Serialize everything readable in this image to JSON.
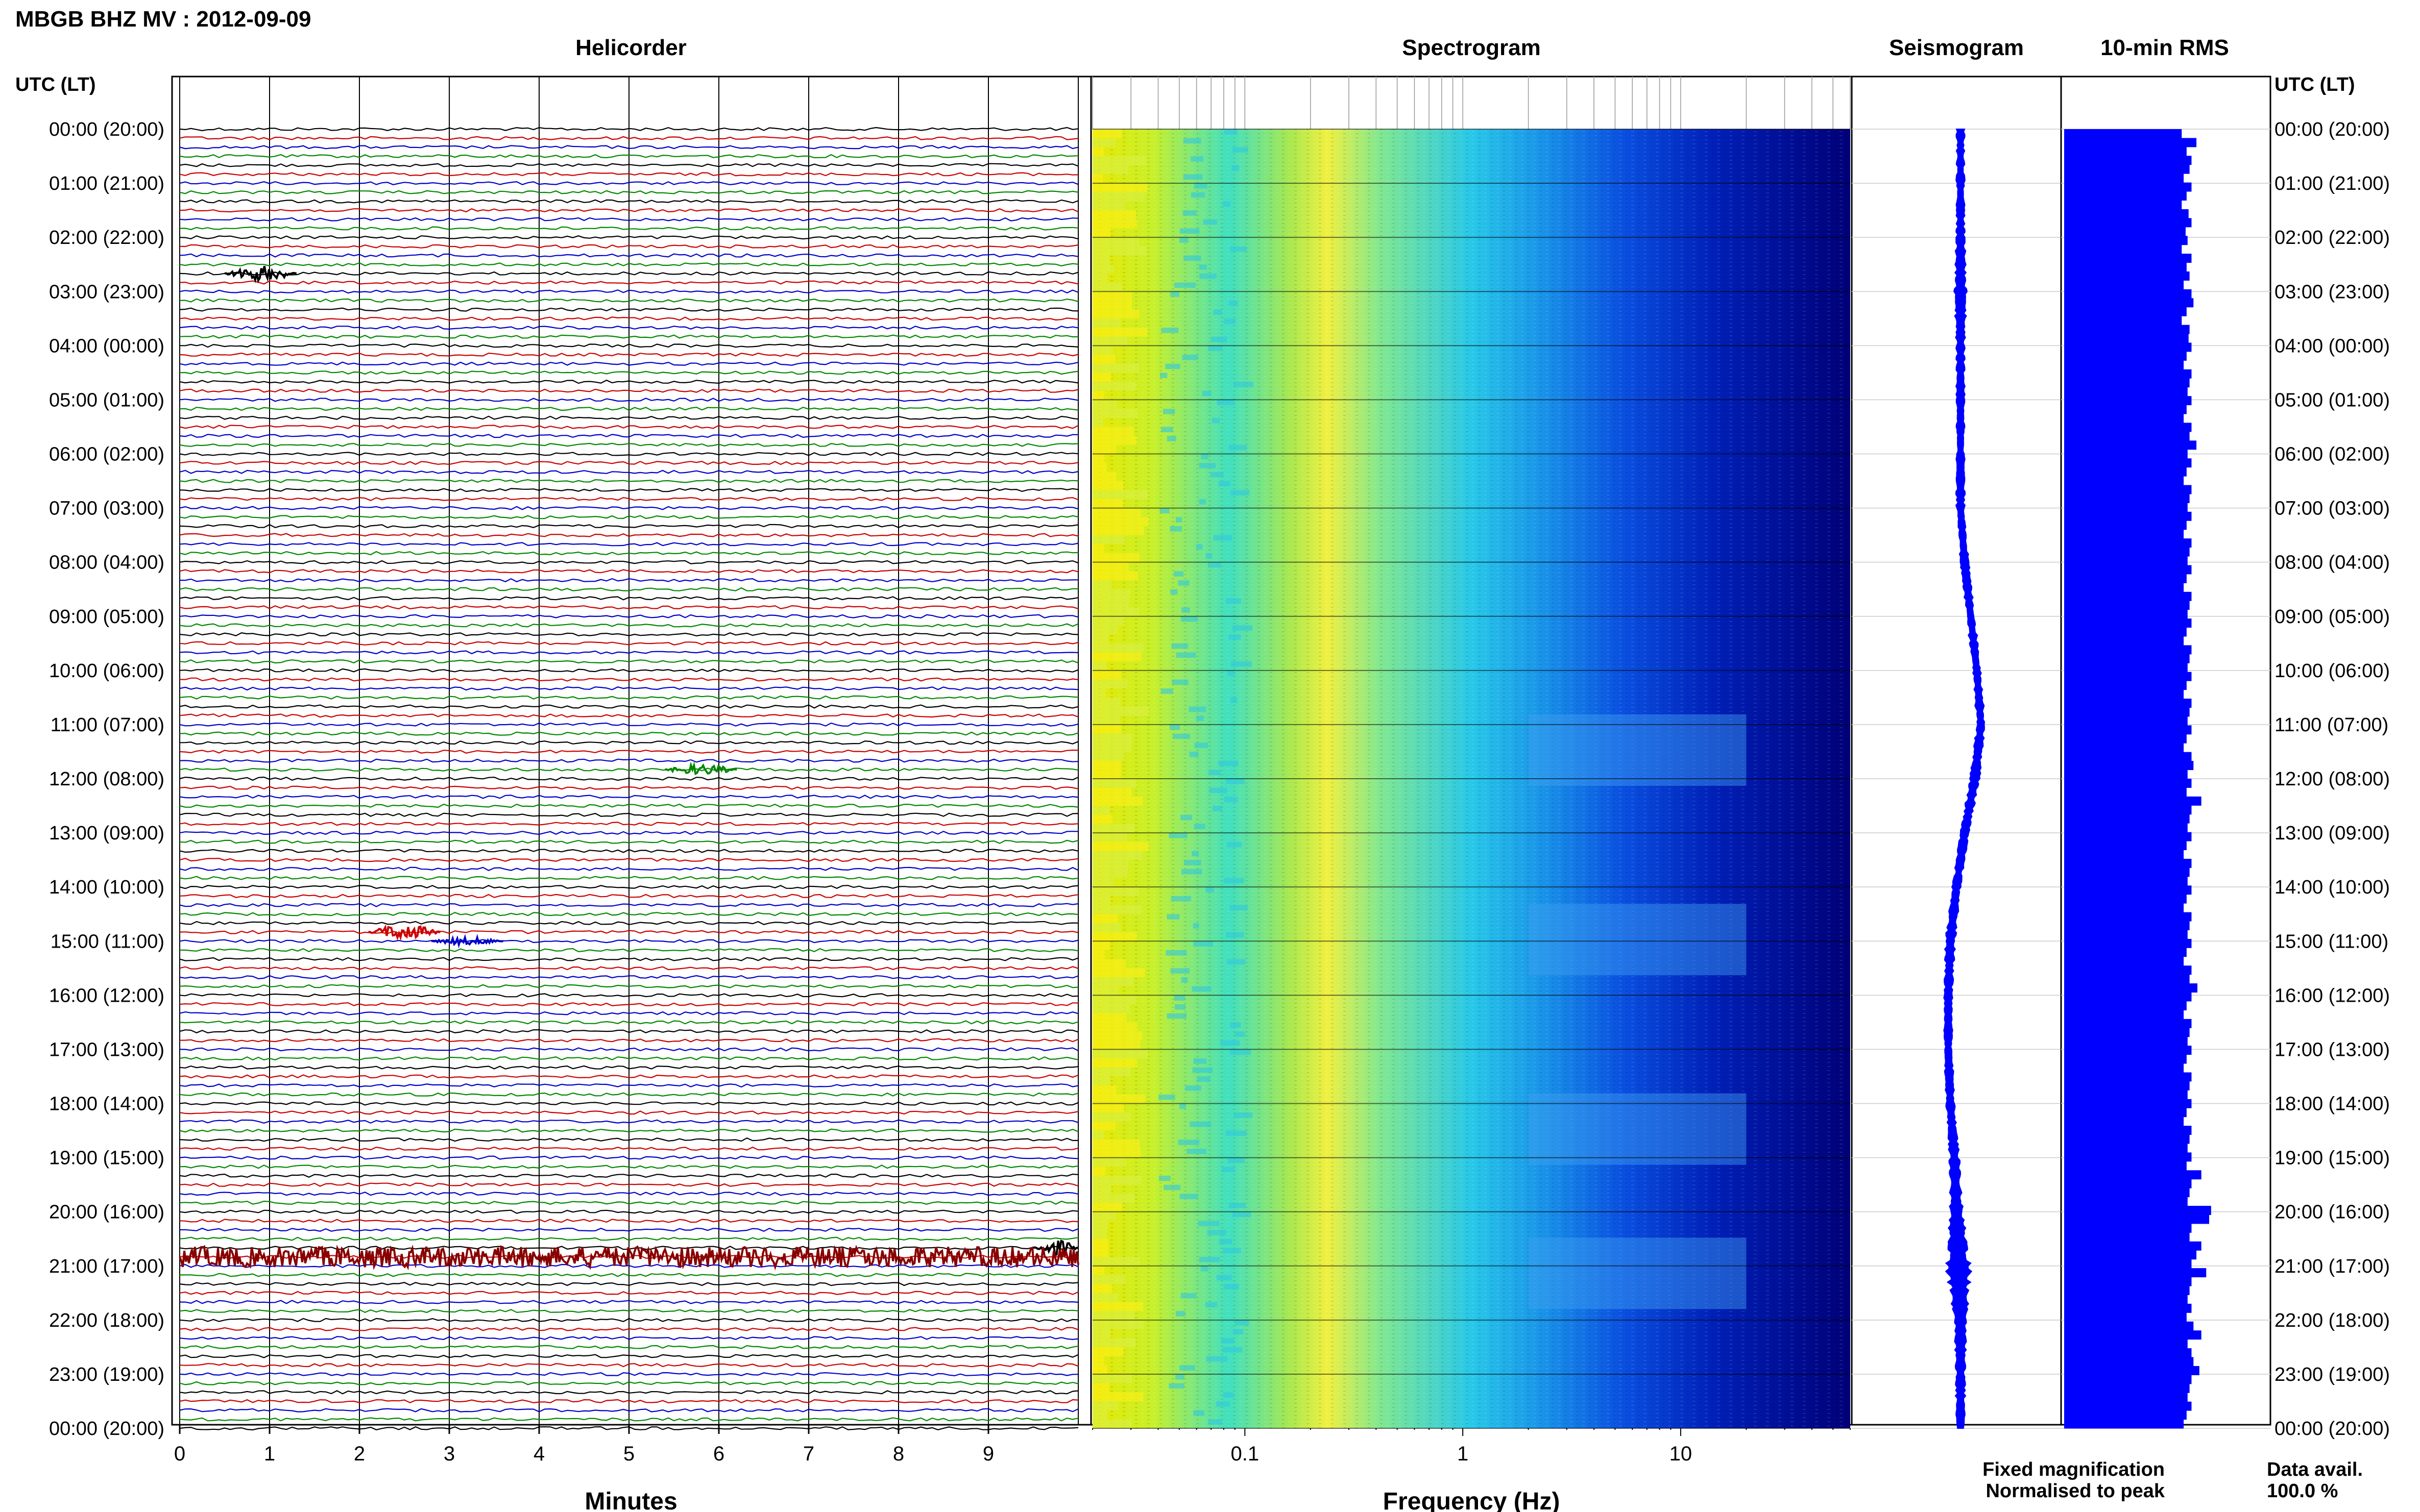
{
  "header": {
    "title": "MBGB BHZ MV : 2012-09-09"
  },
  "panels": {
    "helicorder_title": "Helicorder",
    "spectrogram_title": "Spectrogram",
    "seismogram_title": "Seismogram",
    "rms_title": "10-min RMS"
  },
  "time_axis": {
    "label_left": "UTC (LT)",
    "label_right": "UTC (LT)",
    "ticks": [
      "00:00 (20:00)",
      "01:00 (21:00)",
      "02:00 (22:00)",
      "03:00 (23:00)",
      "04:00 (00:00)",
      "05:00 (01:00)",
      "06:00 (02:00)",
      "07:00 (03:00)",
      "08:00 (04:00)",
      "09:00 (05:00)",
      "10:00 (06:00)",
      "11:00 (07:00)",
      "12:00 (08:00)",
      "13:00 (09:00)",
      "14:00 (10:00)",
      "15:00 (11:00)",
      "16:00 (12:00)",
      "17:00 (13:00)",
      "18:00 (14:00)",
      "19:00 (15:00)",
      "20:00 (16:00)",
      "21:00 (17:00)",
      "22:00 (18:00)",
      "23:00 (19:00)",
      "00:00 (20:00)"
    ]
  },
  "helicorder_axis": {
    "xlabel": "Minutes",
    "ticks": [
      "0",
      "1",
      "2",
      "3",
      "4",
      "5",
      "6",
      "7",
      "8",
      "9"
    ],
    "xlim": [
      0,
      10
    ]
  },
  "spectrogram_axis": {
    "xlabel": "Frequency (Hz)",
    "ticks": [
      "0.1",
      "1",
      "10"
    ],
    "tick_values": [
      0.1,
      1,
      10
    ],
    "xlim": [
      0.02,
      60
    ],
    "scale": "log"
  },
  "legend": {
    "fixed": "Fixed magnification",
    "normalised": "Normalised to peak",
    "fixed_color": "#0000ff",
    "normalised_color": "#ff0000"
  },
  "availability": {
    "label": "Data avail.",
    "value": "100.0 %"
  },
  "colors": {
    "trace_cycle": [
      "#000000",
      "#cc0000",
      "#0000cc",
      "#008800"
    ],
    "event_dark_red": "#880000",
    "spectrum_low": "#00008b",
    "spectrum_mid": "#00e0e0",
    "spectrum_high": "#ffff00",
    "rms_bar": "#0000ff"
  },
  "chart_data": [
    {
      "type": "line",
      "name": "helicorder",
      "title": "Helicorder",
      "xlabel": "Minutes",
      "xlim": [
        0,
        10
      ],
      "rows_per_hour": 6,
      "row_minutes": 10,
      "events": [
        {
          "utc": "02:40",
          "minute": 0.5,
          "amplitude": 3
        },
        {
          "utc": "11:50",
          "minute": 5.4,
          "amplitude": 2
        },
        {
          "utc": "14:50",
          "minute": 2.1,
          "amplitude": 3
        },
        {
          "utc": "15:00",
          "minute": 2.8,
          "amplitude": 1.5
        },
        {
          "utc": "20:40",
          "minute": 9.5,
          "amplitude": 3
        },
        {
          "utc": "20:50",
          "minute": 0,
          "amplitude": 4,
          "duration_minutes": 10
        }
      ]
    },
    {
      "type": "heatmap",
      "name": "spectrogram",
      "title": "Spectrogram",
      "xlabel": "Frequency (Hz)",
      "xscale": "log",
      "xlim": [
        0.02,
        60
      ],
      "dominant_band_hz": [
        0.15,
        0.35
      ],
      "high_energy_bursts_utc": [
        "11:00",
        "14:30",
        "18:00",
        "20:40"
      ]
    },
    {
      "type": "line",
      "name": "seismogram",
      "title": "Seismogram",
      "comment_axis": "time (hours UTC) vs relative amplitude",
      "hours": [
        0,
        1,
        2,
        3,
        4,
        5,
        6,
        7,
        8,
        9,
        10,
        11,
        12,
        13,
        14,
        15,
        16,
        17,
        18,
        19,
        20,
        21,
        22,
        23,
        24
      ],
      "center_offset": [
        0,
        0,
        0,
        0,
        0,
        0,
        0,
        0,
        0.2,
        0.5,
        0.8,
        1,
        0.7,
        0.2,
        -0.2,
        -0.5,
        -0.6,
        -0.6,
        -0.5,
        -0.3,
        -0.2,
        -0.1,
        0,
        0,
        0
      ],
      "amplitude": [
        1,
        1,
        1,
        1.5,
        1,
        1,
        1,
        1,
        1,
        1,
        1,
        1,
        1.2,
        1,
        1,
        1.2,
        1,
        1,
        1,
        1.2,
        1.5,
        3,
        1.5,
        1.2,
        1
      ]
    },
    {
      "type": "bar",
      "name": "rms",
      "title": "10-min RMS",
      "orientation": "horizontal",
      "bin_minutes": 10,
      "values": [
        1.2,
        1.35,
        1.25,
        1.3,
        1.28,
        1.22,
        1.3,
        1.25,
        1.2,
        1.27,
        1.3,
        1.24,
        1.26,
        1.2,
        1.3,
        1.25,
        1.28,
        1.22,
        1.3,
        1.32,
        1.25,
        1.2,
        1.28,
        1.27,
        1.3,
        1.25,
        1.22,
        1.3,
        1.28,
        1.26,
        1.3,
        1.25,
        1.22,
        1.3,
        1.28,
        1.35,
        1.26,
        1.3,
        1.25,
        1.22,
        1.3,
        1.28,
        1.26,
        1.3,
        1.25,
        1.22,
        1.3,
        1.28,
        1.26,
        1.3,
        1.25,
        1.22,
        1.3,
        1.28,
        1.26,
        1.3,
        1.25,
        1.22,
        1.3,
        1.28,
        1.26,
        1.3,
        1.25,
        1.22,
        1.3,
        1.28,
        1.26,
        1.3,
        1.25,
        1.22,
        1.3,
        1.32,
        1.26,
        1.3,
        1.25,
        1.4,
        1.3,
        1.28,
        1.26,
        1.3,
        1.25,
        1.22,
        1.3,
        1.28,
        1.26,
        1.3,
        1.25,
        1.22,
        1.3,
        1.28,
        1.26,
        1.3,
        1.25,
        1.22,
        1.3,
        1.28,
        1.36,
        1.3,
        1.25,
        1.22,
        1.3,
        1.28,
        1.26,
        1.3,
        1.25,
        1.22,
        1.3,
        1.28,
        1.26,
        1.3,
        1.25,
        1.22,
        1.3,
        1.28,
        1.26,
        1.3,
        1.25,
        1.4,
        1.3,
        1.28,
        1.26,
        1.5,
        1.48,
        1.3,
        1.28,
        1.4,
        1.35,
        1.3,
        1.45,
        1.3,
        1.28,
        1.26,
        1.3,
        1.25,
        1.32,
        1.4,
        1.26,
        1.3,
        1.32,
        1.38,
        1.3,
        1.28,
        1.26,
        1.3,
        1.25,
        1.22
      ],
      "xlim": [
        0,
        2
      ]
    }
  ]
}
